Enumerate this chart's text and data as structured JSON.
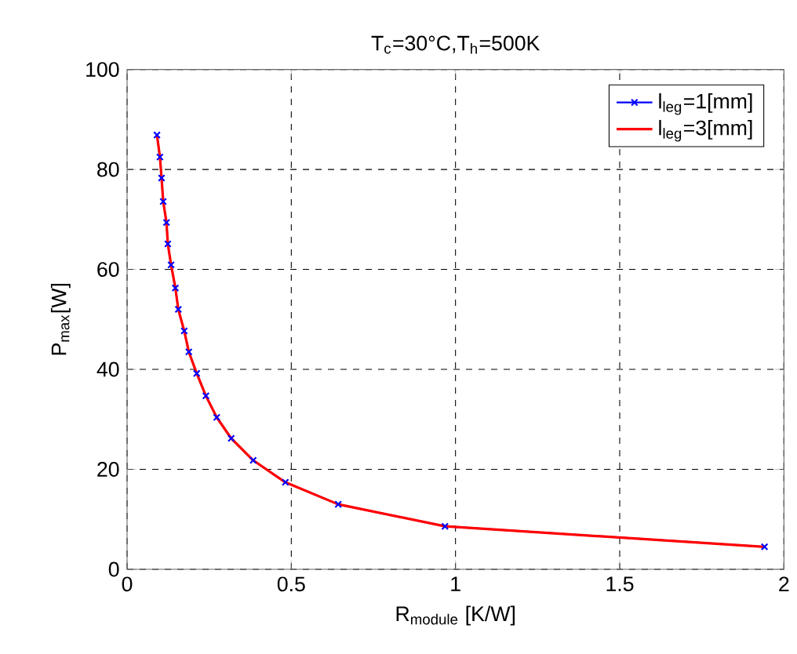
{
  "chart_data": {
    "type": "line",
    "title": "T$_{c}$=30°C,T$_{h}$=500K",
    "xlabel": "R$_{module}$ [K/W]",
    "ylabel": "P$_{max}$[W]",
    "x": [
      0.091,
      0.1,
      0.105,
      0.11,
      0.12,
      0.124,
      0.134,
      0.147,
      0.156,
      0.174,
      0.188,
      0.212,
      0.24,
      0.273,
      0.317,
      0.384,
      0.482,
      0.643,
      0.968,
      1.941
    ],
    "series": [
      {
        "name": "l$_{leg}$=1[mm]",
        "color": "#0000ff",
        "marker": "cross",
        "values": [
          86.9,
          82.5,
          78.3,
          73.6,
          69.4,
          65.1,
          60.9,
          56.3,
          52.0,
          47.7,
          43.5,
          39.2,
          34.7,
          30.4,
          26.2,
          21.8,
          17.4,
          13.0,
          8.6,
          4.5
        ]
      },
      {
        "name": "l$_{leg}$=3[mm]",
        "color": "#ff0000",
        "marker": "none",
        "values": [
          86.9,
          82.5,
          78.3,
          73.6,
          69.4,
          65.1,
          60.9,
          56.3,
          52.0,
          47.7,
          43.5,
          39.2,
          34.7,
          30.4,
          26.2,
          21.8,
          17.4,
          13.0,
          8.6,
          4.5
        ]
      }
    ],
    "xlim": [
      0,
      2
    ],
    "ylim": [
      0,
      100
    ],
    "xticks": [
      0,
      0.5,
      1,
      1.5,
      2
    ],
    "yticks": [
      0,
      20,
      40,
      60,
      80,
      100
    ],
    "grid": true,
    "legend": "top right",
    "line_style": "solid"
  }
}
